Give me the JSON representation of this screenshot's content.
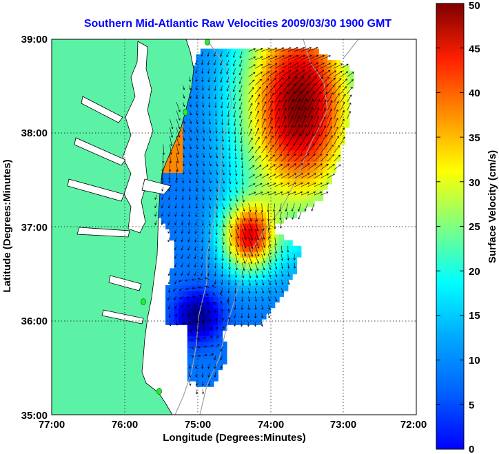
{
  "title": "Southern Mid-Atlantic Raw Velocities 2009/03/30 1900 GMT",
  "xaxis": {
    "label": "Longitude (Degrees:Minutes)",
    "ticks": [
      "77:00",
      "76:00",
      "75:00",
      "74:00",
      "73:00",
      "72:00"
    ],
    "range": [
      -77,
      -72
    ]
  },
  "yaxis": {
    "label": "Latitude (Degrees:Minutes)",
    "ticks": [
      "35:00",
      "36:00",
      "37:00",
      "38:00",
      "39:00"
    ],
    "range": [
      35,
      39
    ]
  },
  "colorbar": {
    "label": "Surface Velocity (cm/s)",
    "ticks": [
      "0",
      "5",
      "10",
      "15",
      "20",
      "25",
      "30",
      "35",
      "40",
      "45",
      "50"
    ],
    "range": [
      0,
      50
    ],
    "colormap": "jet"
  },
  "colors": {
    "title": "#0000ff",
    "land": "#5cf2a6",
    "coastline": "#000000",
    "bathymetry": "#a0a0a0",
    "station": "#22ee33",
    "vector": "#000000",
    "grid": "#000000"
  },
  "grid": true,
  "vector_field": {
    "gyre_center": [
      -75.0,
      36.05
    ],
    "speed_core": [
      -73.6,
      38.3
    ]
  }
}
